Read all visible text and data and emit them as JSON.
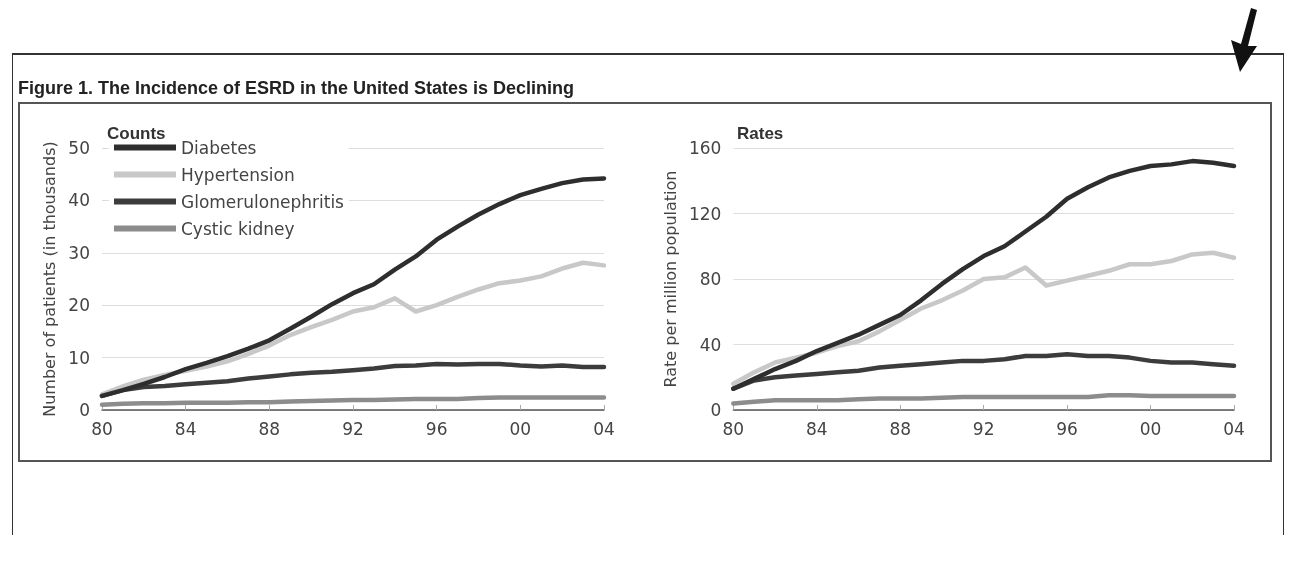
{
  "chart_data": [
    {
      "type": "line",
      "title": "Figure 1. The Incidence of ESRD in the United States is Declining",
      "subtitle": "Counts",
      "ylabel": "Number of patients (in thousands)",
      "x": [
        1980,
        1981,
        1982,
        1983,
        1984,
        1985,
        1986,
        1987,
        1988,
        1989,
        1990,
        1991,
        1992,
        1993,
        1994,
        1995,
        1996,
        1997,
        1998,
        1999,
        2000,
        2001,
        2002,
        2003,
        2004
      ],
      "series": [
        {
          "name": "Diabetes",
          "color": "#2e2e2e",
          "values": [
            2.7,
            3.8,
            5,
            6.3,
            7.8,
            9,
            10.3,
            11.7,
            13.3,
            15.5,
            17.8,
            20.2,
            22.3,
            24,
            26.8,
            29.3,
            32.5,
            35,
            37.3,
            39.3,
            41,
            42.2,
            43.3,
            44,
            44.2
          ]
        },
        {
          "name": "Hypertension",
          "color": "#c8c8c8",
          "values": [
            3,
            4.5,
            5.8,
            6.7,
            7.5,
            8.3,
            9.3,
            10.7,
            12.3,
            14.3,
            15.8,
            17.2,
            18.8,
            19.6,
            21.3,
            18.8,
            20,
            21.6,
            23,
            24.2,
            24.7,
            25.5,
            27,
            28.1,
            27.6
          ]
        },
        {
          "name": "Glomerulonephritis",
          "color": "#3c3c3c",
          "values": [
            2.7,
            3.8,
            4.4,
            4.6,
            4.9,
            5.2,
            5.5,
            6,
            6.4,
            6.8,
            7.1,
            7.3,
            7.6,
            7.9,
            8.4,
            8.5,
            8.8,
            8.7,
            8.8,
            8.8,
            8.5,
            8.3,
            8.5,
            8.2,
            8.2
          ]
        },
        {
          "name": "Cystic kidney",
          "color": "#8c8c8c",
          "values": [
            1,
            1.2,
            1.3,
            1.3,
            1.4,
            1.4,
            1.4,
            1.5,
            1.5,
            1.6,
            1.7,
            1.8,
            1.9,
            1.9,
            2,
            2.1,
            2.1,
            2.1,
            2.3,
            2.4,
            2.4,
            2.4,
            2.4,
            2.4,
            2.4
          ]
        }
      ],
      "xlim": [
        1980,
        2004
      ],
      "xticks": [
        {
          "value": 1980,
          "label": "80"
        },
        {
          "value": 1984,
          "label": "84"
        },
        {
          "value": 1988,
          "label": "88"
        },
        {
          "value": 1992,
          "label": "92"
        },
        {
          "value": 1996,
          "label": "96"
        },
        {
          "value": 2000,
          "label": "00"
        },
        {
          "value": 2004,
          "label": "04"
        }
      ],
      "ylim": [
        0,
        50
      ],
      "yticks": [
        0,
        10,
        20,
        30,
        40,
        50
      ],
      "grid": "y",
      "legend": "top left",
      "marker": "none",
      "line_style": "solid"
    },
    {
      "type": "line",
      "title": "Rates",
      "ylabel": "Rate per million population",
      "x": [
        1980,
        1981,
        1982,
        1983,
        1984,
        1985,
        1986,
        1987,
        1988,
        1989,
        1990,
        1991,
        1992,
        1993,
        1994,
        1995,
        1996,
        1997,
        1998,
        1999,
        2000,
        2001,
        2002,
        2003,
        2004
      ],
      "series": [
        {
          "color": "#2e2e2e",
          "values": [
            13,
            19,
            25,
            30,
            36,
            41,
            46,
            52,
            58,
            67,
            77,
            86,
            94,
            100,
            109,
            118,
            129,
            136,
            142,
            146,
            149,
            150,
            152,
            151,
            149
          ]
        },
        {
          "color": "#c8c8c8",
          "values": [
            16,
            23,
            29,
            32,
            35,
            39,
            42,
            48,
            55,
            62,
            67,
            73,
            80,
            81,
            87,
            76,
            79,
            82,
            85,
            89,
            89,
            91,
            95,
            96,
            93
          ]
        },
        {
          "color": "#3c3c3c",
          "values": [
            13,
            18,
            20,
            21,
            22,
            23,
            24,
            26,
            27,
            28,
            29,
            30,
            30,
            31,
            33,
            33,
            34,
            33,
            33,
            32,
            30,
            29,
            29,
            28,
            27
          ]
        },
        {
          "color": "#8c8c8c",
          "values": [
            4,
            5,
            6,
            6,
            6,
            6,
            6.5,
            7,
            7,
            7,
            7.5,
            8,
            8,
            8,
            8,
            8,
            8,
            8,
            9,
            9,
            8.5,
            8.5,
            8.5,
            8.5,
            8.5
          ]
        }
      ],
      "xlim": [
        1980,
        2004
      ],
      "xticks": [
        {
          "value": 1980,
          "label": "80"
        },
        {
          "value": 1984,
          "label": "84"
        },
        {
          "value": 1988,
          "label": "88"
        },
        {
          "value": 1992,
          "label": "92"
        },
        {
          "value": 1996,
          "label": "96"
        },
        {
          "value": 2000,
          "label": "00"
        },
        {
          "value": 2004,
          "label": "04"
        }
      ],
      "ylim": [
        0,
        160
      ],
      "yticks": [
        0,
        40,
        80,
        120,
        160
      ],
      "grid": "y",
      "legend": false,
      "marker": "none",
      "line_style": "solid"
    }
  ]
}
